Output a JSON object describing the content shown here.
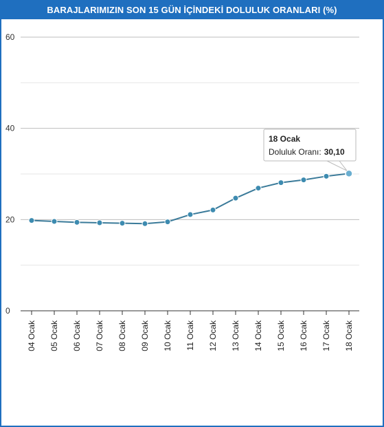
{
  "chart_data": {
    "type": "line",
    "title": "BARAJLARIMIZIN SON 15 GÜN İÇİNDEKİ DOLULUK ORANLARI (%)",
    "categories": [
      "04 Ocak",
      "05 Ocak",
      "06 Ocak",
      "07 Ocak",
      "08 Ocak",
      "09 Ocak",
      "10 Ocak",
      "11 Ocak",
      "12 Ocak",
      "13 Ocak",
      "14 Ocak",
      "15 Ocak",
      "16 Ocak",
      "17 Ocak",
      "18 Ocak"
    ],
    "series": [
      {
        "values": [
          19.8,
          19.6,
          19.4,
          19.3,
          19.2,
          19.1,
          19.5,
          21.1,
          22.1,
          24.7,
          26.9,
          28.1,
          28.7,
          29.5,
          30.1
        ]
      }
    ],
    "yticks": [
      0,
      20,
      40,
      60
    ],
    "ylim": [
      0,
      60
    ],
    "grid": true,
    "line_color": "#3a7a99",
    "marker_color": "#3d8bb0",
    "title_bar_color": "#1f6fbf",
    "tooltip": {
      "title": "18 Ocak",
      "label": "Doluluk Oranı:",
      "value": "30,10"
    }
  }
}
